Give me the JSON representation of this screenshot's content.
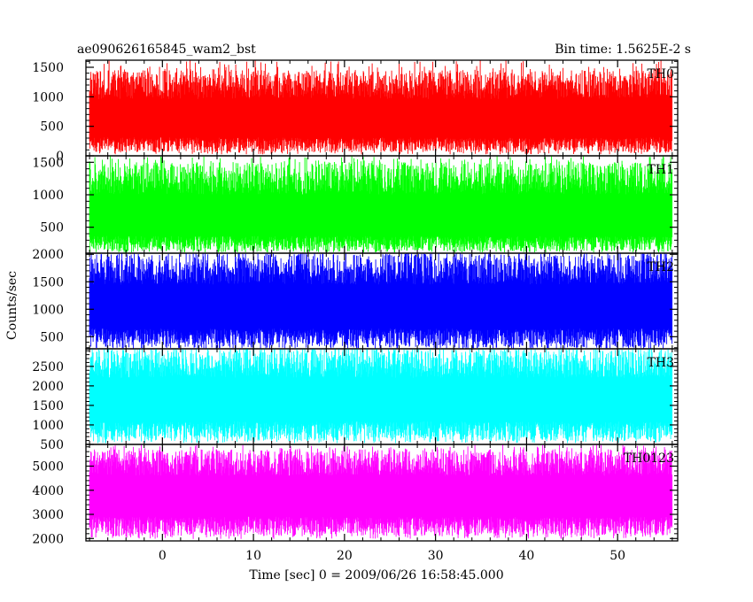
{
  "title_left": "ae090626165845_wam2_bst",
  "title_right": "Bin time: 1.5625E-2 s",
  "ylabel": "Counts/sec",
  "xlabel": "Time [sec] 0 = 2009/06/26 16:58:45.000",
  "chart_data": {
    "type": "line",
    "x_range": [
      -8.4,
      56.6
    ],
    "data_x_range": [
      -8.0,
      56.0
    ],
    "bin_time": 0.015625,
    "x_ticks": [
      0,
      10,
      20,
      30,
      40,
      50
    ],
    "x_tick_labels": [
      "0",
      "10",
      "20",
      "30",
      "40",
      "50"
    ],
    "panels": [
      {
        "name": "TH0",
        "color": "#ff0000",
        "ylim": [
          0,
          1620
        ],
        "y_ticks": [
          0,
          500,
          1000,
          1500
        ],
        "y_tick_labels": [
          "0",
          "500",
          "1000",
          "1500"
        ],
        "baseline_mean": 560,
        "typical_range": [
          60,
          1450
        ],
        "max_peak": 1620
      },
      {
        "name": "TH1",
        "color": "#00ff00",
        "ylim": [
          100,
          1600
        ],
        "y_ticks": [
          500,
          1000,
          1500
        ],
        "y_tick_labels": [
          "500",
          "1000",
          "1500"
        ],
        "baseline_mean": 600,
        "typical_range": [
          130,
          1500
        ],
        "max_peak": 1600
      },
      {
        "name": "TH2",
        "color": "#0000ff",
        "ylim": [
          280,
          2020
        ],
        "y_ticks": [
          500,
          1000,
          1500,
          2000
        ],
        "y_tick_labels": [
          "500",
          "1000",
          "1500",
          "2000"
        ],
        "baseline_mean": 1000,
        "typical_range": [
          300,
          2000
        ],
        "max_peak": 2020
      },
      {
        "name": "TH3",
        "color": "#00ffff",
        "ylim": [
          500,
          2950
        ],
        "y_ticks": [
          500,
          1000,
          1500,
          2000,
          2500
        ],
        "y_tick_labels": [
          "500",
          "1000",
          "1500",
          "2000",
          "2500"
        ],
        "baseline_mean": 1600,
        "typical_range": [
          580,
          2950
        ],
        "max_peak": 2950
      },
      {
        "name": "TH0123",
        "color": "#ff00ff",
        "ylim": [
          1900,
          5900
        ],
        "y_ticks": [
          2000,
          3000,
          4000,
          5000
        ],
        "y_tick_labels": [
          "2000",
          "3000",
          "4000",
          "5000"
        ],
        "baseline_mean": 3700,
        "typical_range": [
          2100,
          5700
        ],
        "max_peak": 5900
      }
    ]
  }
}
